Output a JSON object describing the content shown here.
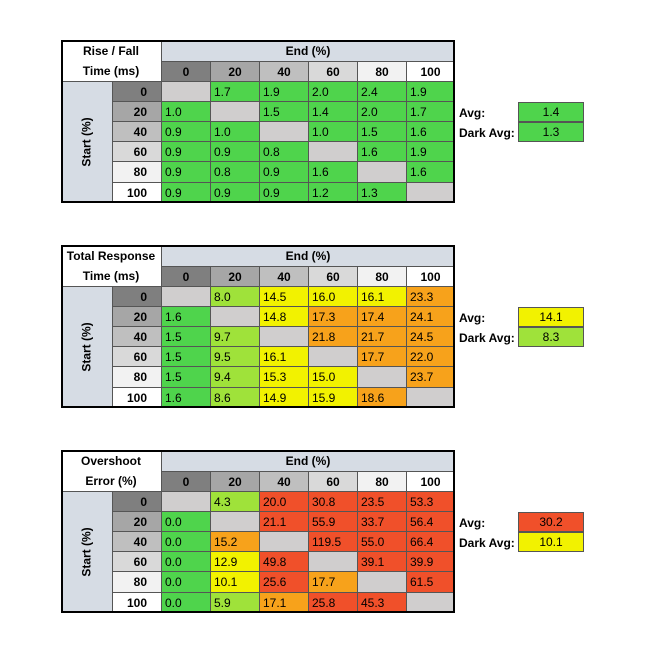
{
  "chart_data": [
    {
      "type": "table",
      "title_line1": "Rise / Fall",
      "title_line2": "Time (ms)",
      "column_group_label": "End (%)",
      "row_group_label": "Start (%)",
      "columns": [
        "0",
        "20",
        "40",
        "60",
        "80",
        "100"
      ],
      "rows": [
        "0",
        "20",
        "40",
        "60",
        "80",
        "100"
      ],
      "cells": [
        [
          "",
          "1.7",
          "1.9",
          "2.0",
          "2.4",
          "1.9"
        ],
        [
          "1.0",
          "",
          "1.5",
          "1.4",
          "2.0",
          "1.7"
        ],
        [
          "0.9",
          "1.0",
          "",
          "1.0",
          "1.5",
          "1.6"
        ],
        [
          "0.9",
          "0.9",
          "0.8",
          "",
          "1.6",
          "1.9"
        ],
        [
          "0.9",
          "0.8",
          "0.9",
          "1.6",
          "",
          "1.6"
        ],
        [
          "0.9",
          "0.9",
          "0.9",
          "1.2",
          "1.3",
          ""
        ]
      ],
      "avg_label": "Avg:",
      "avg_value": "1.4",
      "dark_avg_label": "Dark Avg:",
      "dark_avg_value": "1.3"
    },
    {
      "type": "table",
      "title_line1": "Total Response",
      "title_line2": "Time (ms)",
      "column_group_label": "End (%)",
      "row_group_label": "Start (%)",
      "columns": [
        "0",
        "20",
        "40",
        "60",
        "80",
        "100"
      ],
      "rows": [
        "0",
        "20",
        "40",
        "60",
        "80",
        "100"
      ],
      "cells": [
        [
          "",
          "8.0",
          "14.5",
          "16.0",
          "16.1",
          "23.3"
        ],
        [
          "1.6",
          "",
          "14.8",
          "17.3",
          "17.4",
          "24.1"
        ],
        [
          "1.5",
          "9.7",
          "",
          "21.8",
          "21.7",
          "24.5"
        ],
        [
          "1.5",
          "9.5",
          "16.1",
          "",
          "17.7",
          "22.0"
        ],
        [
          "1.5",
          "9.4",
          "15.3",
          "15.0",
          "",
          "23.7"
        ],
        [
          "1.6",
          "8.6",
          "14.9",
          "15.9",
          "18.6",
          ""
        ]
      ],
      "avg_label": "Avg:",
      "avg_value": "14.1",
      "dark_avg_label": "Dark Avg:",
      "dark_avg_value": "8.3"
    },
    {
      "type": "table",
      "title_line1": "Overshoot",
      "title_line2": "Error (%)",
      "column_group_label": "End (%)",
      "row_group_label": "Start (%)",
      "columns": [
        "0",
        "20",
        "40",
        "60",
        "80",
        "100"
      ],
      "rows": [
        "0",
        "20",
        "40",
        "60",
        "80",
        "100"
      ],
      "cells": [
        [
          "",
          "4.3",
          "20.0",
          "30.8",
          "23.5",
          "53.3"
        ],
        [
          "0.0",
          "",
          "21.1",
          "55.9",
          "33.7",
          "56.4"
        ],
        [
          "0.0",
          "15.2",
          "",
          "119.5",
          "55.0",
          "66.4"
        ],
        [
          "0.0",
          "12.9",
          "49.8",
          "",
          "39.1",
          "39.9"
        ],
        [
          "0.0",
          "10.1",
          "25.6",
          "17.7",
          "",
          "61.5"
        ],
        [
          "0.0",
          "5.9",
          "17.1",
          "25.8",
          "45.3",
          ""
        ]
      ],
      "avg_label": "Avg:",
      "avg_value": "30.2",
      "dark_avg_label": "Dark Avg:",
      "dark_avg_value": "10.1"
    }
  ],
  "colors": {
    "green": "#4fd44c",
    "lime": "#9fe23a",
    "yellow": "#f2f200",
    "orange": "#f7a21b",
    "red": "#f0502a",
    "diagonal": "#d0cece",
    "header_blue": "#d6dce4",
    "col_header_grays": [
      "#7f7f7f",
      "#a6a6a6",
      "#bfbfbf",
      "#d9d9d9",
      "#f2f2f2",
      "#ffffff"
    ]
  }
}
